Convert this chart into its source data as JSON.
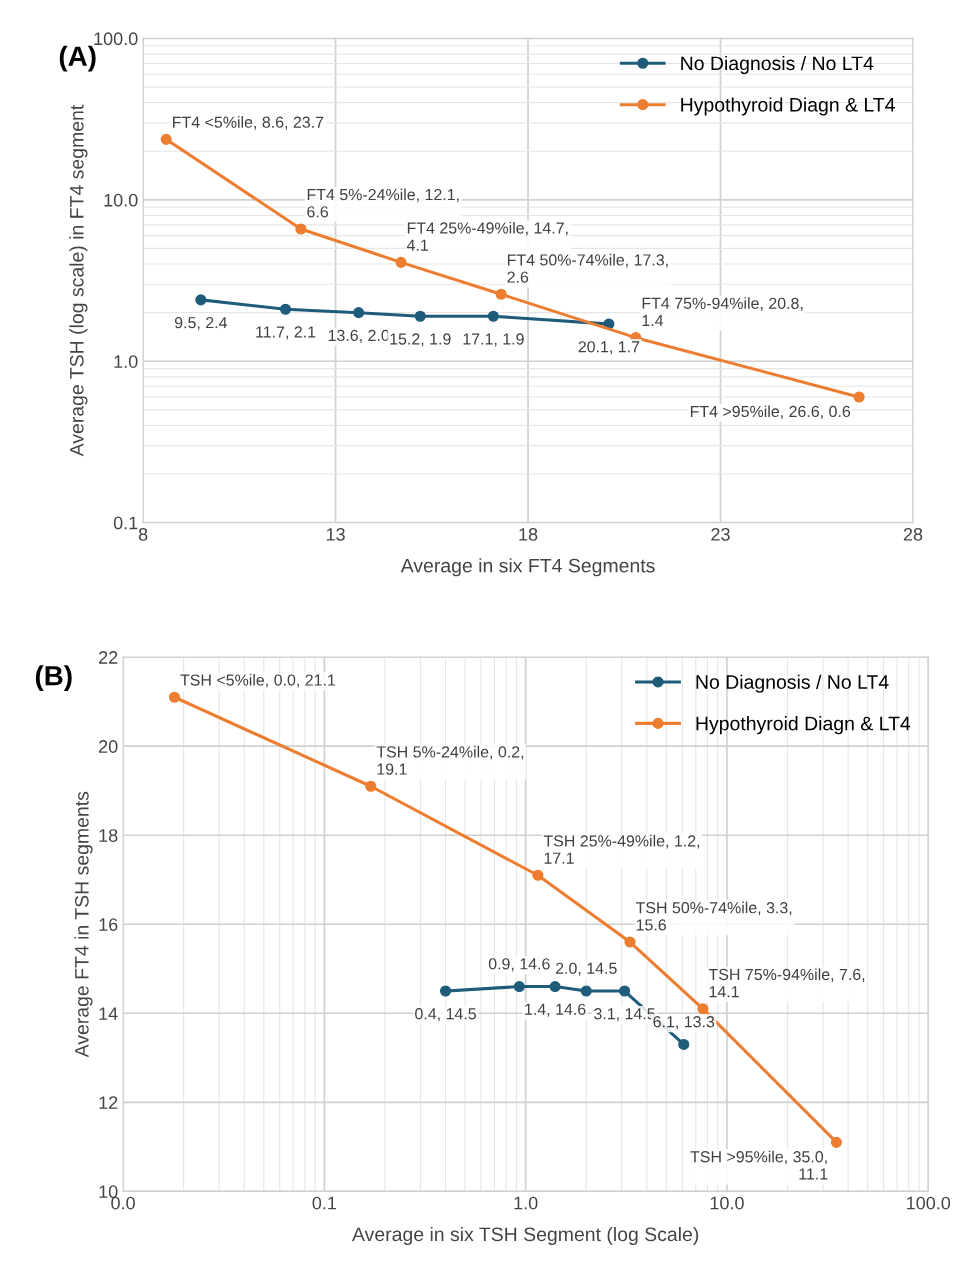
{
  "chart_data": [
    {
      "type": "line",
      "title": "(A)",
      "xlabel": "Average in six FT4 Segments",
      "ylabel": "Average TSH (log scale) in FT4 segment",
      "log": "y",
      "xlim": [
        8,
        28
      ],
      "xticks": [
        8,
        13,
        18,
        23,
        28
      ],
      "ylim": [
        0.1,
        100
      ],
      "yticks": [
        {
          "value": 0.1,
          "label": "0.1"
        },
        {
          "value": 1,
          "label": "1.0"
        },
        {
          "value": 10,
          "label": "10.0"
        },
        {
          "value": 100,
          "label": "100.0"
        }
      ],
      "grid": true,
      "legend": "top right",
      "marker": "circle",
      "series": [
        {
          "name": "No Diagnosis / No LT4",
          "color": "#1f5c7a",
          "x": [
            9.5,
            11.7,
            13.6,
            15.2,
            17.1,
            20.1
          ],
          "values": [
            2.4,
            2.1,
            2.0,
            1.9,
            1.9,
            1.7
          ],
          "value_labels": [
            "9.5, 2.4",
            "11.7, 2.1",
            "13.6, 2.0",
            "15.2, 1.9",
            "17.1, 1.9",
            "20.1, 1.7"
          ]
        },
        {
          "name": "Hypothyroid Diagn & LT4",
          "color": "#ed7d31",
          "x": [
            8.6,
            12.1,
            14.7,
            17.3,
            20.8,
            26.6
          ],
          "values": [
            23.7,
            6.6,
            4.1,
            2.6,
            1.4,
            0.6
          ],
          "value_labels": [
            "FT4 <5%ile, 8.6, 23.7",
            "FT4 5%-24%ile, 12.1, 6.6",
            "FT4 25%-49%ile, 14.7, 4.1",
            "FT4 50%-74%ile, 17.3, 2.6",
            "FT4 75%-94%ile, 20.8, 1.4",
            "FT4 >95%ile, 26.6, 0.6"
          ]
        }
      ]
    },
    {
      "type": "line",
      "title": "(B)",
      "xlabel": "Average in six TSH Segment (log Scale)",
      "ylabel": "Average FT4 in TSH segments",
      "log": "x",
      "xlim": [
        0.01,
        100
      ],
      "xticks": [
        {
          "value": 0.01,
          "label": "0.0"
        },
        {
          "value": 0.1,
          "label": "0.1"
        },
        {
          "value": 1,
          "label": "1.0"
        },
        {
          "value": 10,
          "label": "10.0"
        },
        {
          "value": 100,
          "label": "100.0"
        }
      ],
      "ylim": [
        10,
        22
      ],
      "yticks": [
        10,
        12,
        14,
        16,
        18,
        20,
        22
      ],
      "grid": true,
      "legend": "top right",
      "marker": "circle",
      "series": [
        {
          "name": "No Diagnosis / No LT4",
          "color": "#1f5c7a",
          "x": [
            0.4,
            0.93,
            1.4,
            2.0,
            3.1,
            6.1
          ],
          "values": [
            14.5,
            14.6,
            14.6,
            14.5,
            14.5,
            13.3
          ],
          "value_labels": [
            "0.4, 14.5",
            "0.9, 14.6",
            "1.4, 14.6",
            "2.0, 14.5",
            "3.1, 14.5",
            "6.1, 13.3"
          ]
        },
        {
          "name": "Hypothyroid Diagn & LT4",
          "color": "#ed7d31",
          "x": [
            0.018,
            0.17,
            1.15,
            3.3,
            7.6,
            35.0
          ],
          "values": [
            21.1,
            19.1,
            17.1,
            15.6,
            14.1,
            11.1
          ],
          "value_labels": [
            "TSH <5%ile, 0.0, 21.1",
            "TSH 5%-24%ile, 0.2, 19.1",
            "TSH 25%-49%ile, 1.2, 17.1",
            "TSH 50%-74%ile, 3.3, 15.6",
            "TSH 75%-94%ile, 7.6, 14.1",
            "TSH >95%ile, 35.0, 11.1"
          ]
        }
      ]
    }
  ]
}
